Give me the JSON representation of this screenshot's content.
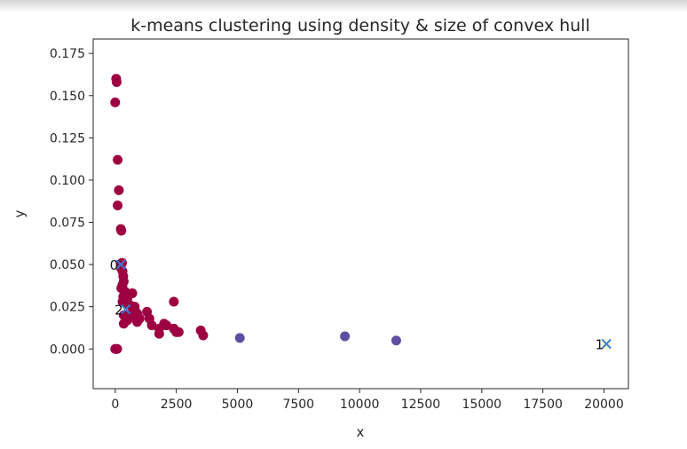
{
  "chart_data": {
    "type": "scatter",
    "title": "k-means clustering using density & size of convex hull",
    "xlabel": "x",
    "ylabel": "y",
    "xlim": [
      -900,
      21000
    ],
    "ylim": [
      -0.0235,
      0.1835
    ],
    "xticks": [
      0,
      2500,
      5000,
      7500,
      10000,
      12500,
      15000,
      17500,
      20000
    ],
    "xtick_labels": [
      "0",
      "2500",
      "5000",
      "7500",
      "10000",
      "12500",
      "15000",
      "17500",
      "20000"
    ],
    "yticks": [
      0.0,
      0.025,
      0.05,
      0.075,
      0.1,
      0.125,
      0.15,
      0.175
    ],
    "ytick_labels": [
      "0.000",
      "0.025",
      "0.050",
      "0.075",
      "0.100",
      "0.125",
      "0.150",
      "0.175"
    ],
    "grid": false,
    "clusters": [
      {
        "color": "#9e0142",
        "points": [
          [
            0,
            0.0
          ],
          [
            80,
            0.0
          ],
          [
            40,
            0.0
          ],
          [
            40,
            0.16
          ],
          [
            60,
            0.158
          ],
          [
            0,
            0.146
          ],
          [
            100,
            0.112
          ],
          [
            150,
            0.094
          ],
          [
            100,
            0.085
          ],
          [
            230,
            0.071
          ],
          [
            250,
            0.07
          ],
          [
            280,
            0.051
          ],
          [
            230,
            0.048
          ],
          [
            300,
            0.046
          ],
          [
            330,
            0.043
          ],
          [
            350,
            0.04
          ],
          [
            300,
            0.038
          ],
          [
            250,
            0.036
          ],
          [
            400,
            0.034
          ],
          [
            330,
            0.031
          ],
          [
            500,
            0.03
          ],
          [
            300,
            0.028
          ],
          [
            450,
            0.027
          ],
          [
            600,
            0.026
          ],
          [
            800,
            0.025
          ],
          [
            700,
            0.022
          ],
          [
            900,
            0.021
          ],
          [
            350,
            0.02
          ],
          [
            700,
            0.019
          ],
          [
            1000,
            0.018
          ],
          [
            500,
            0.017
          ],
          [
            900,
            0.016
          ],
          [
            350,
            0.015
          ],
          [
            1300,
            0.022
          ],
          [
            1400,
            0.018
          ],
          [
            1500,
            0.014
          ],
          [
            1800,
            0.012
          ],
          [
            2000,
            0.015
          ],
          [
            2100,
            0.014
          ],
          [
            1800,
            0.009
          ],
          [
            2400,
            0.012
          ],
          [
            2500,
            0.01
          ],
          [
            2600,
            0.01
          ],
          [
            2400,
            0.028
          ],
          [
            700,
            0.033
          ],
          [
            3500,
            0.011
          ],
          [
            3600,
            0.008
          ]
        ]
      },
      {
        "color": "#5e4fa2",
        "points": [
          [
            5100,
            0.0065
          ],
          [
            9400,
            0.0075
          ],
          [
            11500,
            0.005
          ]
        ]
      },
      {
        "color": "#ffffbf",
        "points": [
          [
            20100,
            0.003
          ]
        ]
      }
    ],
    "centroids": [
      {
        "label": "0",
        "x": 230,
        "y": 0.05
      },
      {
        "label": "1",
        "x": 20100,
        "y": 0.003
      },
      {
        "label": "2",
        "x": 430,
        "y": 0.0235
      }
    ],
    "centroid_color": "#3b7dd8"
  }
}
